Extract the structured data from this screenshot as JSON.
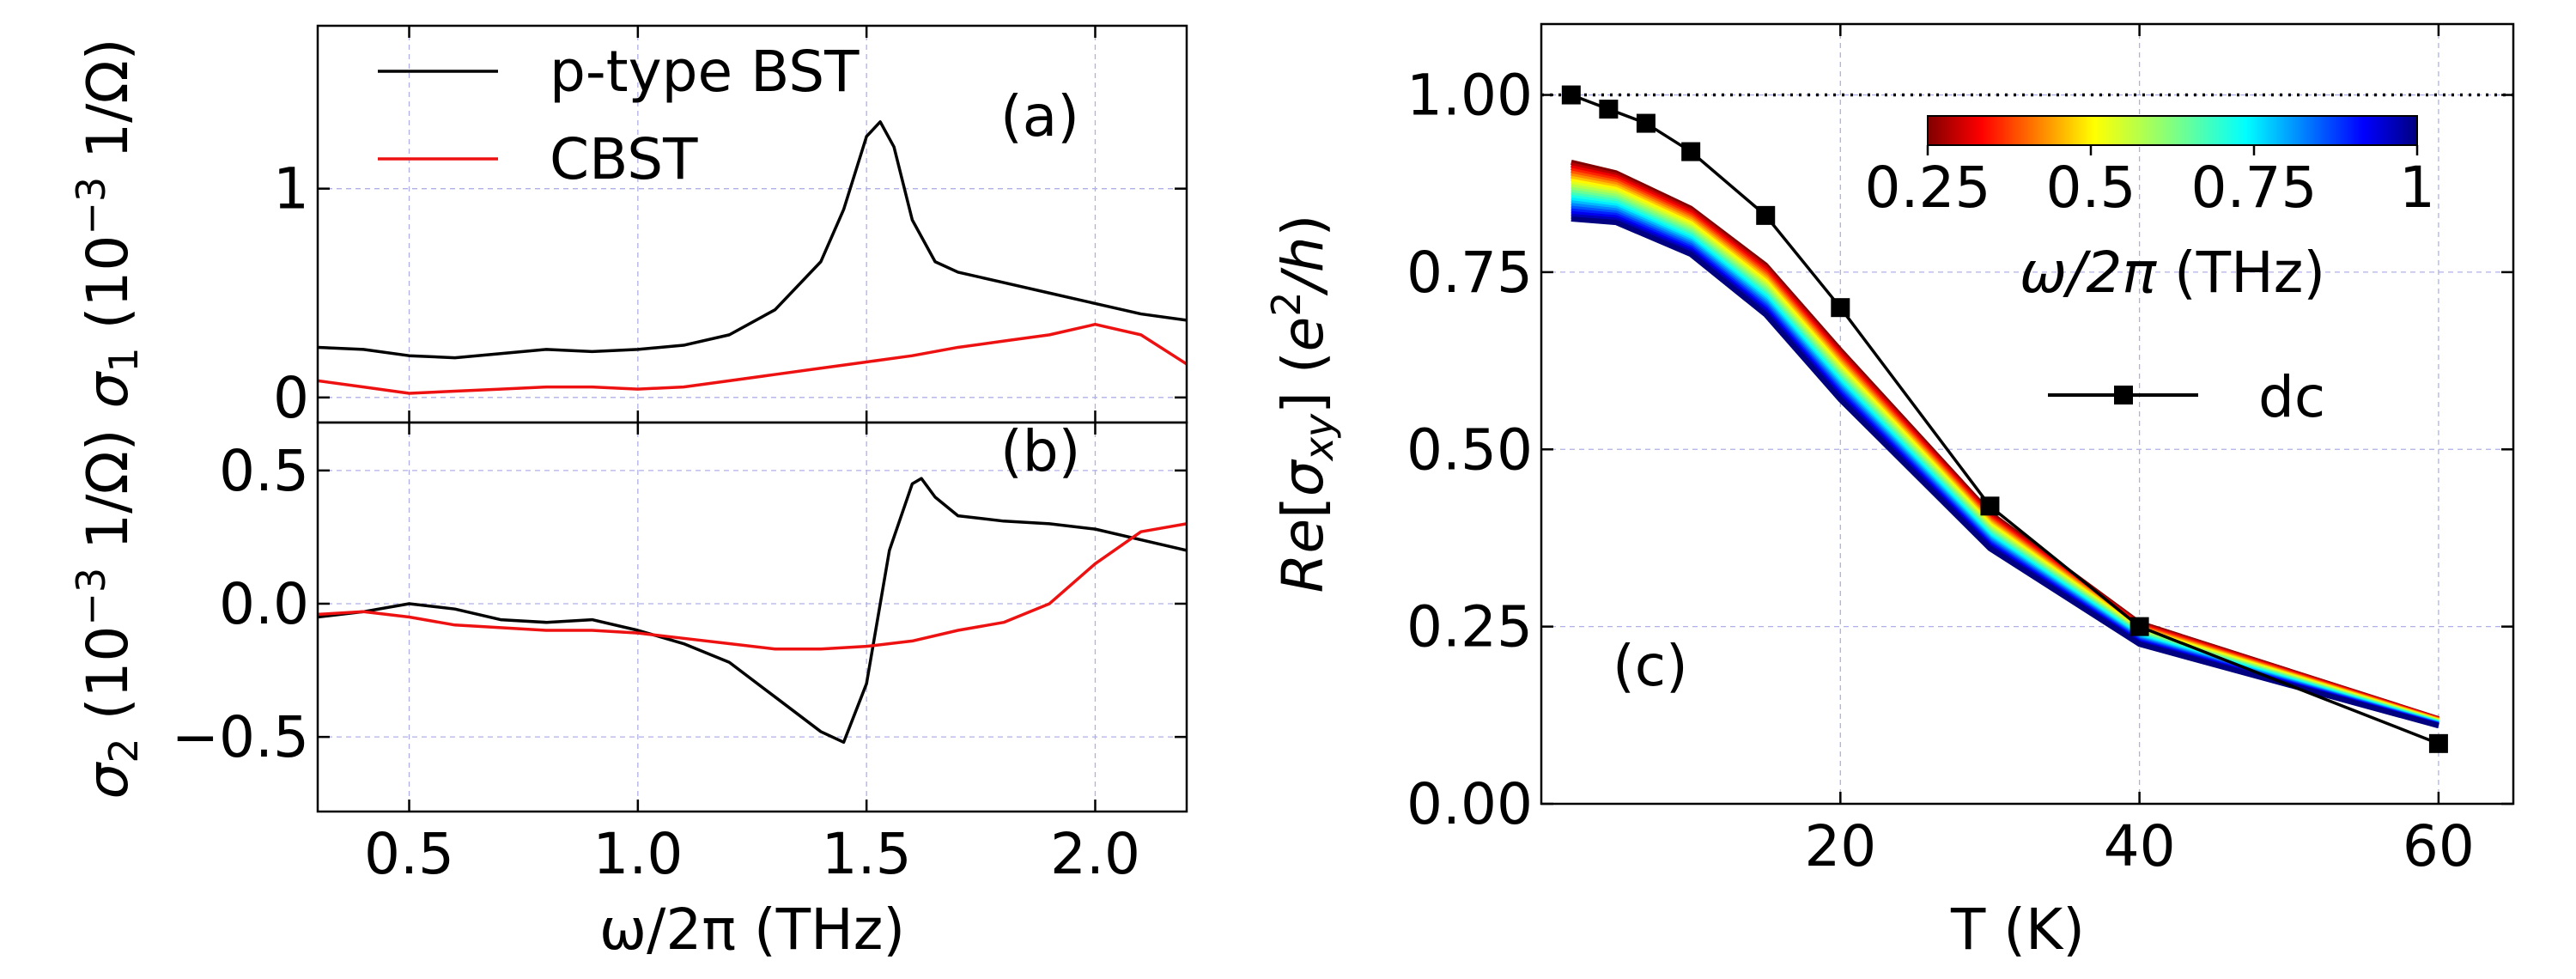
{
  "chart_data": [
    {
      "id": "a",
      "type": "line",
      "panel_label": "(a)",
      "xlabel": "ω/2π (THz)",
      "ylabel": "σ",
      "ylabel_sub": "1",
      "ylabel_units": " (10",
      "ylabel_exp": "−3",
      "ylabel_tail": " 1/Ω)",
      "xlim": [
        0.3,
        2.2
      ],
      "ylim": [
        -0.12,
        1.78
      ],
      "yticks": [
        0,
        1
      ],
      "ytick_labels": [
        "0",
        "1"
      ],
      "xticks": [
        0.5,
        1.0,
        1.5,
        2.0
      ],
      "grid": true,
      "legend_position": "top-left",
      "series": [
        {
          "name": "p-type BST",
          "color": "#000000",
          "x": [
            0.3,
            0.4,
            0.5,
            0.6,
            0.7,
            0.8,
            0.9,
            1.0,
            1.1,
            1.2,
            1.3,
            1.4,
            1.45,
            1.5,
            1.53,
            1.56,
            1.6,
            1.65,
            1.7,
            1.8,
            1.9,
            2.0,
            2.1,
            2.2
          ],
          "values": [
            0.24,
            0.23,
            0.2,
            0.19,
            0.21,
            0.23,
            0.22,
            0.23,
            0.25,
            0.3,
            0.42,
            0.65,
            0.9,
            1.25,
            1.32,
            1.2,
            0.85,
            0.65,
            0.6,
            0.55,
            0.5,
            0.45,
            0.4,
            0.37
          ]
        },
        {
          "name": "CBST",
          "color": "#ee1111",
          "x": [
            0.3,
            0.4,
            0.5,
            0.6,
            0.7,
            0.8,
            0.9,
            1.0,
            1.1,
            1.2,
            1.3,
            1.4,
            1.5,
            1.6,
            1.7,
            1.8,
            1.9,
            2.0,
            2.1,
            2.2
          ],
          "values": [
            0.08,
            0.05,
            0.02,
            0.03,
            0.04,
            0.05,
            0.05,
            0.04,
            0.05,
            0.08,
            0.11,
            0.14,
            0.17,
            0.2,
            0.24,
            0.27,
            0.3,
            0.35,
            0.3,
            0.16
          ]
        }
      ]
    },
    {
      "id": "b",
      "type": "line",
      "panel_label": "(b)",
      "xlabel": "ω/2π (THz)",
      "ylabel": "σ",
      "ylabel_sub": "2",
      "ylabel_units": " (10",
      "ylabel_exp": "−3",
      "ylabel_tail": " 1/Ω)",
      "xlim": [
        0.3,
        2.2
      ],
      "ylim": [
        -0.78,
        0.68
      ],
      "yticks": [
        -0.5,
        0.0,
        0.5
      ],
      "ytick_labels": [
        "−0.5",
        "0.0",
        "0.5"
      ],
      "xticks": [
        0.5,
        1.0,
        1.5,
        2.0
      ],
      "xtick_labels": [
        "0.5",
        "1.0",
        "1.5",
        "2.0"
      ],
      "grid": true,
      "series": [
        {
          "name": "p-type BST",
          "color": "#000000",
          "x": [
            0.3,
            0.4,
            0.5,
            0.6,
            0.7,
            0.8,
            0.9,
            1.0,
            1.1,
            1.2,
            1.3,
            1.4,
            1.45,
            1.5,
            1.55,
            1.6,
            1.62,
            1.65,
            1.7,
            1.8,
            1.9,
            2.0,
            2.1,
            2.2
          ],
          "values": [
            -0.05,
            -0.03,
            0.0,
            -0.02,
            -0.06,
            -0.07,
            -0.06,
            -0.1,
            -0.15,
            -0.22,
            -0.35,
            -0.48,
            -0.52,
            -0.3,
            0.2,
            0.45,
            0.47,
            0.4,
            0.33,
            0.31,
            0.3,
            0.28,
            0.24,
            0.2
          ]
        },
        {
          "name": "CBST",
          "color": "#ee1111",
          "x": [
            0.3,
            0.4,
            0.5,
            0.6,
            0.7,
            0.8,
            0.9,
            1.0,
            1.1,
            1.2,
            1.3,
            1.4,
            1.5,
            1.6,
            1.7,
            1.8,
            1.9,
            2.0,
            2.1,
            2.2
          ],
          "values": [
            -0.04,
            -0.03,
            -0.05,
            -0.08,
            -0.09,
            -0.1,
            -0.1,
            -0.11,
            -0.13,
            -0.15,
            -0.17,
            -0.17,
            -0.16,
            -0.14,
            -0.1,
            -0.07,
            0.0,
            0.15,
            0.27,
            0.3
          ]
        }
      ]
    },
    {
      "id": "c",
      "type": "line",
      "panel_label": "(c)",
      "xlabel": "T (K)",
      "ylabel": "Re[σ",
      "ylabel_sub": "xy",
      "ylabel_tail": "] (e²/h)",
      "xlim": [
        0,
        65
      ],
      "ylim": [
        0,
        1.1
      ],
      "xticks": [
        20,
        40,
        60
      ],
      "xtick_labels": [
        "20",
        "40",
        "60"
      ],
      "yticks": [
        0.0,
        0.25,
        0.5,
        0.75,
        1.0
      ],
      "ytick_labels": [
        "0.00",
        "0.25",
        "0.50",
        "0.75",
        "1.00"
      ],
      "grid": true,
      "reference_line": 1.0,
      "dc": {
        "name": "dc",
        "color": "#000000",
        "x": [
          2,
          4.5,
          7,
          10,
          15,
          20,
          30,
          40,
          60
        ],
        "values": [
          1.0,
          0.98,
          0.96,
          0.92,
          0.83,
          0.7,
          0.42,
          0.25,
          0.085
        ]
      },
      "ac_T": [
        2,
        5,
        10,
        15,
        20,
        30,
        40,
        60
      ],
      "ac_top": [
        0.905,
        0.89,
        0.84,
        0.76,
        0.64,
        0.41,
        0.255,
        0.12
      ],
      "ac_bottom": [
        0.825,
        0.82,
        0.775,
        0.69,
        0.57,
        0.36,
        0.225,
        0.11
      ],
      "ac_curve_count": 22,
      "colorbar": {
        "label": "ω/2π (THz)",
        "range": [
          0.25,
          1.0
        ],
        "ticks": [
          0.25,
          0.5,
          0.75,
          1.0
        ],
        "tick_labels": [
          "0.25",
          "0.5",
          "0.75",
          "1"
        ],
        "colormap": "jet_r"
      }
    }
  ]
}
